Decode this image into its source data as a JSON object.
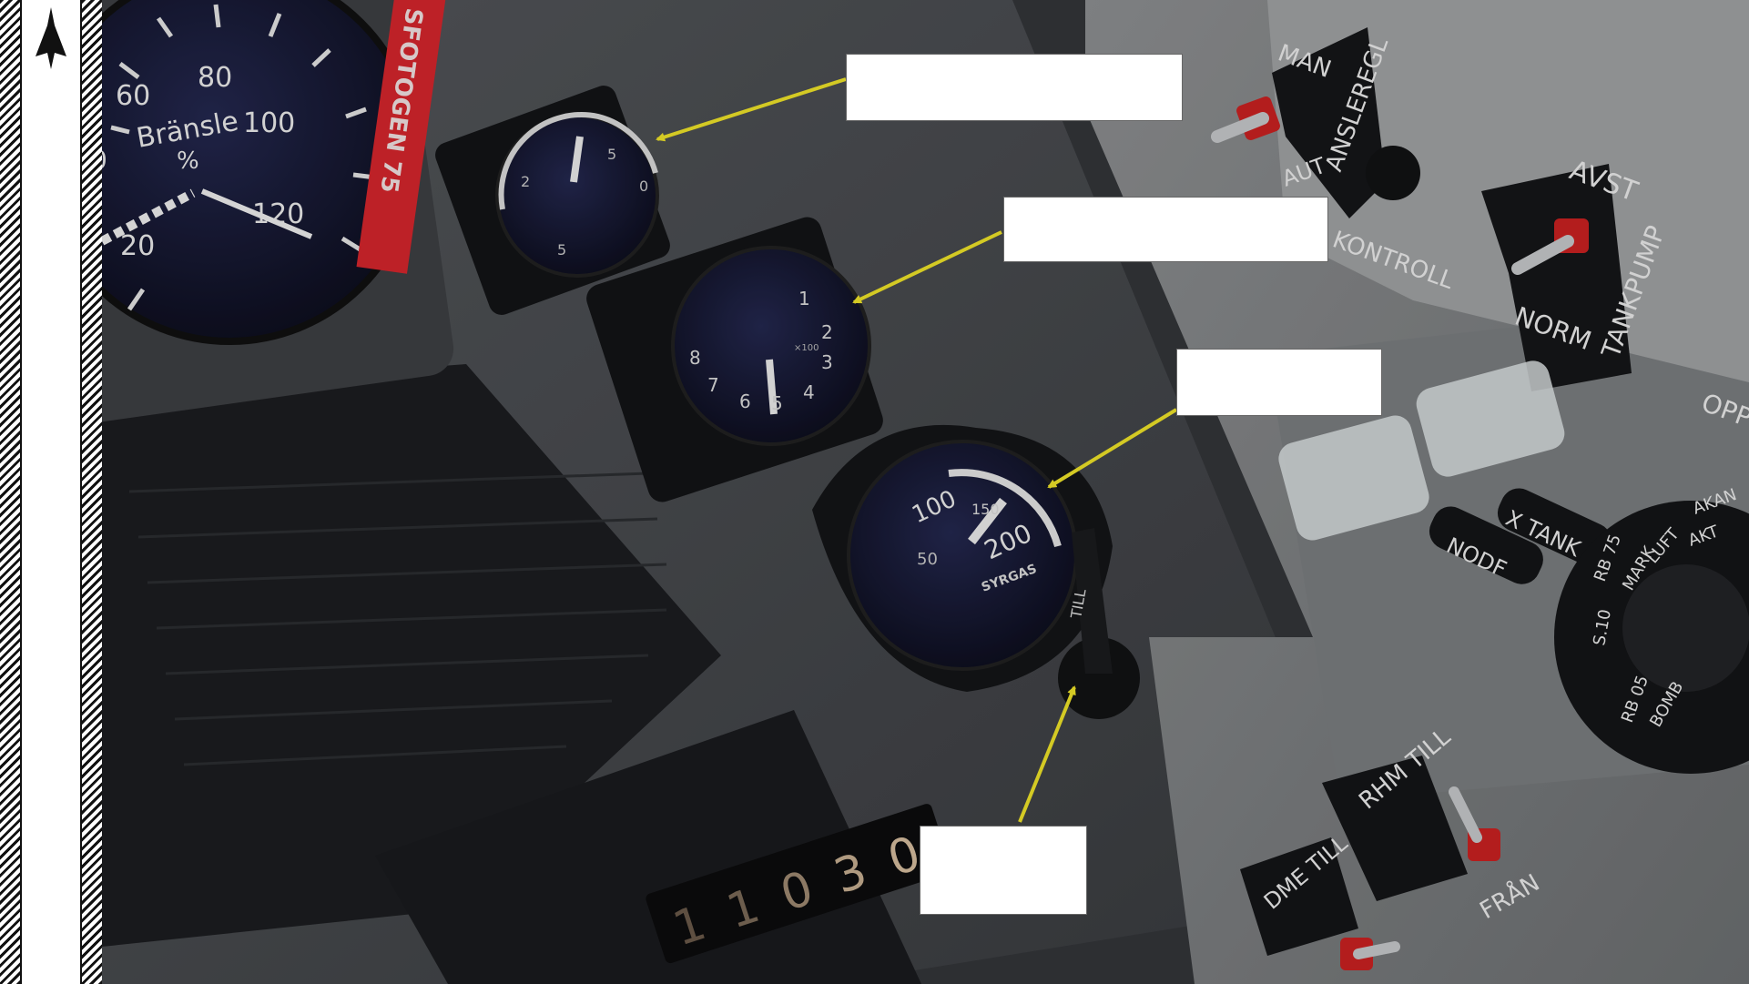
{
  "colors": {
    "arrow": "#f2e629",
    "red_strip": "#d8262d",
    "gauge_face": "#1a1c33",
    "panel": "#8a8d8f"
  },
  "fuel_gauge": {
    "title": "Bränsle",
    "unit": "%",
    "ticks": [
      "0",
      "20",
      "60",
      "80",
      "100",
      "120"
    ]
  },
  "red_strip_text": "SFOTOGEN 75",
  "small_gauge_1": {
    "ticks": [
      "2",
      "5",
      "0",
      "5"
    ]
  },
  "small_gauge_2": {
    "ticks": [
      "1",
      "2",
      "3",
      "4",
      "5",
      "6",
      "7",
      "8"
    ],
    "sub": "×100"
  },
  "oxygen_gauge": {
    "ticks": [
      "50",
      "100",
      "150",
      "200"
    ],
    "title": "SYRGAS"
  },
  "lever_label": "TILL",
  "counter": {
    "digits": [
      "1",
      "1",
      "0",
      "3",
      "0"
    ]
  },
  "right_panel": {
    "man": "MAN",
    "aut": "AUT",
    "ansleregl": "ANSLEREGL",
    "kontroll": "KONTROLL",
    "avst": "AVST",
    "norm": "NORM",
    "tankpump": "TANKPUMP",
    "opp": "OPP",
    "nodf": "NODF",
    "x_tank": "X TANK",
    "rhm_till": "RHM TILL",
    "dme_till": "DME TILL",
    "fran": "FRÅN",
    "selector": [
      "AKAN",
      "AKT",
      "LUFT",
      "MARK",
      "RB 75",
      "RB 05",
      "S.10",
      "BOMB"
    ]
  },
  "callouts": [
    "",
    "",
    "",
    ""
  ]
}
